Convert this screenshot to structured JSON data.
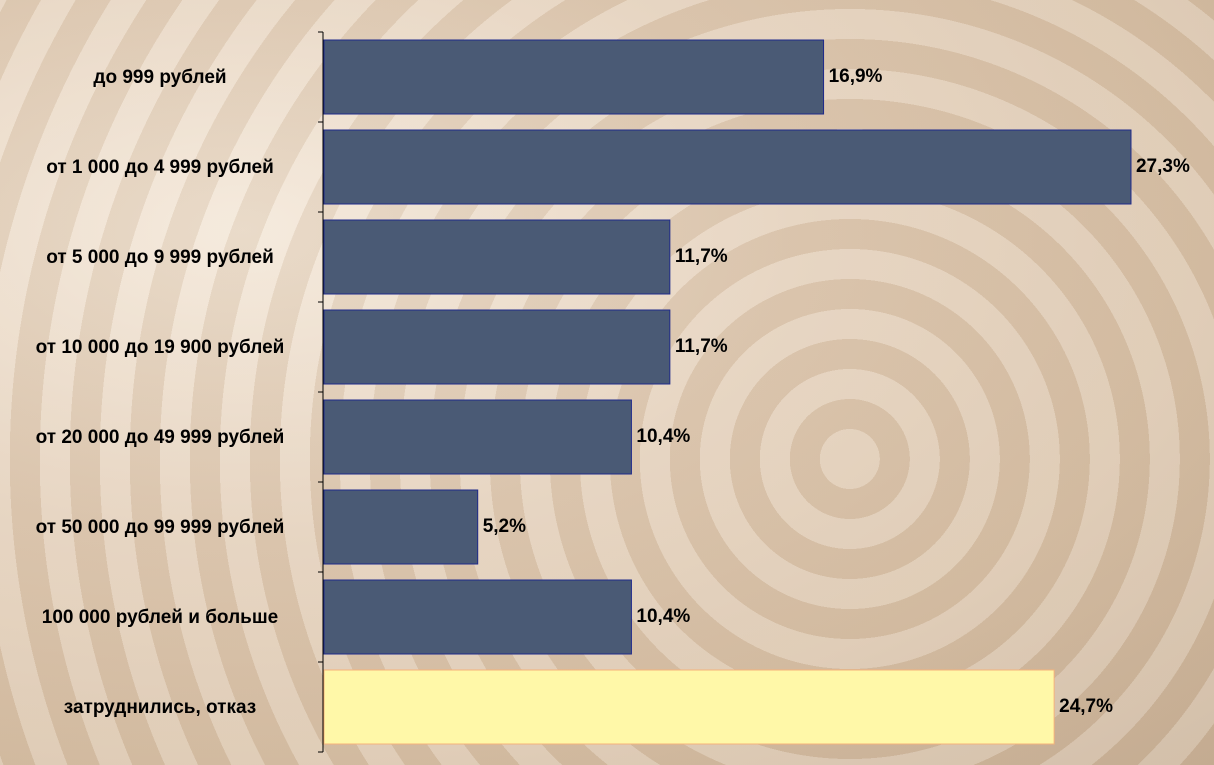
{
  "chart_data": {
    "type": "hbar",
    "categories": [
      "до 999 рублей",
      "от 1 000 до 4 999 рублей",
      "от 5 000 до 9 999 рублей",
      "от 10 000 до 19 900 рублей",
      "от 20 000 до 49 999 рублей",
      "от 50 000 до 99 999 рублей",
      "100 000 рублей и больше",
      "затруднились, отказ"
    ],
    "values": [
      16.9,
      27.3,
      11.7,
      11.7,
      10.4,
      5.2,
      10.4,
      24.7
    ],
    "value_labels": [
      "16,9%",
      "27,3%",
      "11,7%",
      "11,7%",
      "10,4%",
      "5,2%",
      "10,4%",
      "24,7%"
    ],
    "colors": [
      "#4a5a75",
      "#4a5a75",
      "#4a5a75",
      "#4a5a75",
      "#4a5a75",
      "#4a5a75",
      "#4a5a75",
      "#fff8a8"
    ]
  }
}
